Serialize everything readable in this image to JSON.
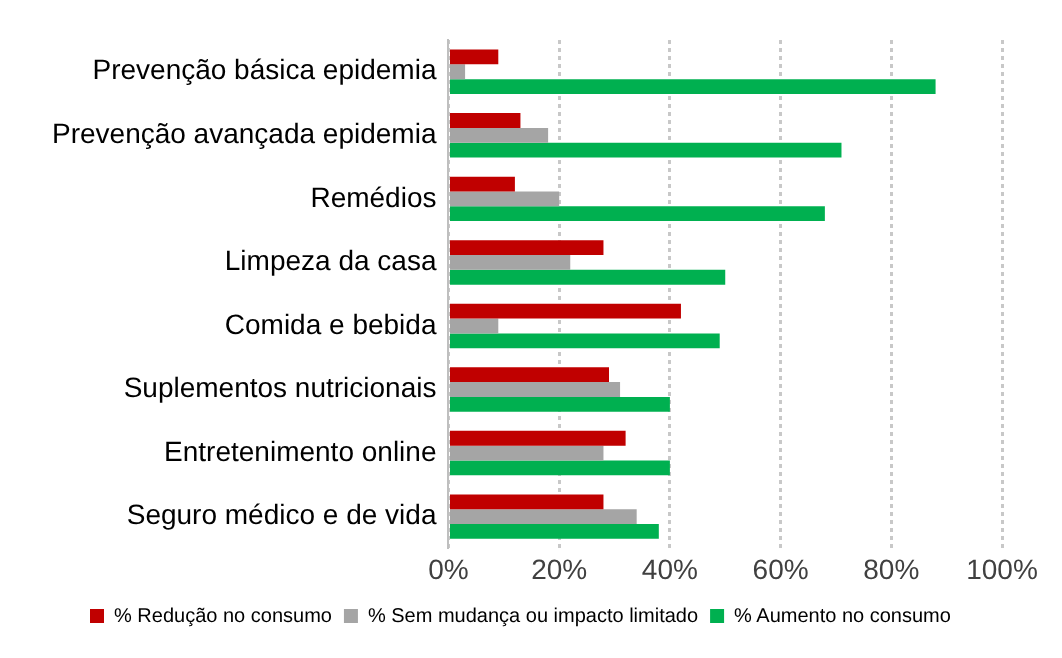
{
  "chart_data": {
    "type": "bar",
    "orientation": "horizontal",
    "categories": [
      "Prevenção básica epidemia",
      "Prevenção avançada epidemia",
      "Remédios",
      "Limpeza da casa",
      "Comida e bebida",
      "Suplementos nutricionais",
      "Entretenimento online",
      "Seguro médico e de vida"
    ],
    "series": [
      {
        "name": "% Redução no consumo",
        "color": "#c00000",
        "values": [
          9,
          13,
          12,
          28,
          42,
          29,
          32,
          28
        ]
      },
      {
        "name": "% Sem mudança ou impacto limitado",
        "color": "#a5a5a5",
        "values": [
          3,
          18,
          20,
          22,
          9,
          31,
          28,
          34
        ]
      },
      {
        "name": "% Aumento no consumo",
        "color": "#00b050",
        "values": [
          88,
          71,
          68,
          50,
          49,
          40,
          40,
          38
        ]
      }
    ],
    "xlim": [
      0,
      100
    ],
    "xticks": [
      {
        "value": 0,
        "label": "0%"
      },
      {
        "value": 20,
        "label": "20%"
      },
      {
        "value": 40,
        "label": "40%"
      },
      {
        "value": 60,
        "label": "60%"
      },
      {
        "value": 80,
        "label": "80%"
      },
      {
        "value": 100,
        "label": "100%"
      }
    ],
    "grid": "x",
    "legend": "bottom"
  }
}
